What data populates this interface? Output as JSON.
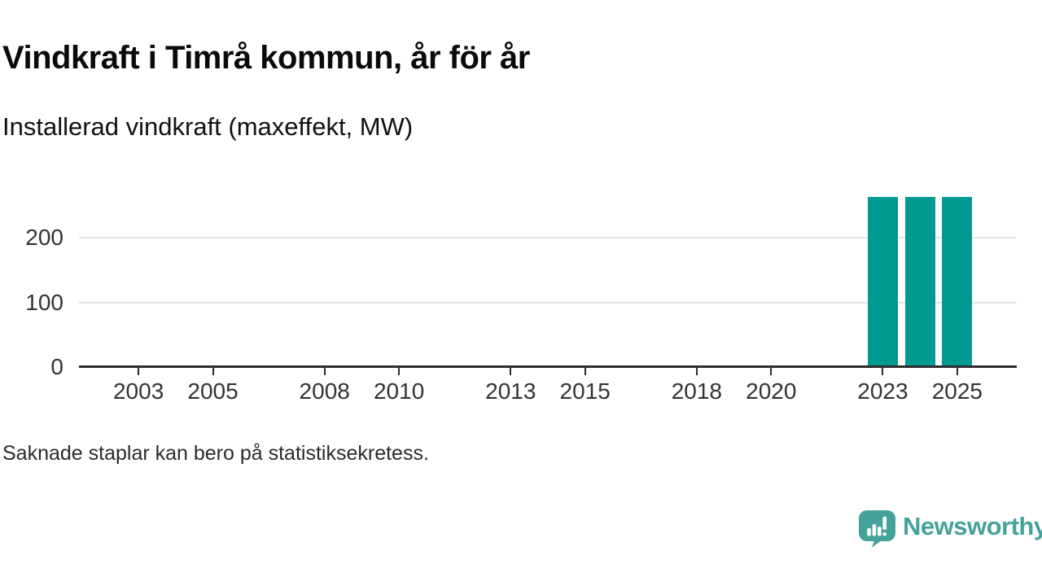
{
  "header": {
    "title": "Vindkraft i Timrå kommun, år för år",
    "subtitle": "Installerad vindkraft (maxeffekt, MW)"
  },
  "footer": {
    "note": "Saknade staplar kan bero på statistiksekretess.",
    "brand_name": "Newsworthy"
  },
  "colors": {
    "bar": "#009a91",
    "gridline": "#e5e5e5",
    "axis": "#2d2d2d",
    "tick_text": "#333333",
    "brand_teal": "#45a29b"
  },
  "icons": {
    "brand_icon": "speech-bubble-bar-chart-exclamation-icon"
  },
  "chart_data": {
    "type": "bar",
    "title": "Vindkraft i Timrå kommun, år för år",
    "subtitle": "Installerad vindkraft (maxeffekt, MW)",
    "ylabel": "Installerad vindkraft (maxeffekt, MW)",
    "xlabel": "",
    "unit": "MW",
    "categories": [
      2023,
      2024,
      2025
    ],
    "values": [
      263,
      263,
      263
    ],
    "note": "Saknade staplar kan bero på statistiksekretess.",
    "grid": "horizontal-only",
    "legend": "none",
    "x_axis": {
      "range": [
        2001.4,
        2026.6
      ],
      "tick_years": [
        2003,
        2005,
        2008,
        2010,
        2013,
        2015,
        2018,
        2020,
        2023,
        2025
      ],
      "tick_labels": [
        "2003",
        "2005",
        "2008",
        "2010",
        "2013",
        "2015",
        "2018",
        "2020",
        "2023",
        "2025"
      ]
    },
    "y_axis": {
      "ylim": [
        0,
        263
      ],
      "ticks": [
        0,
        100,
        200
      ],
      "tick_labels": [
        "0",
        "100",
        "200"
      ]
    }
  }
}
